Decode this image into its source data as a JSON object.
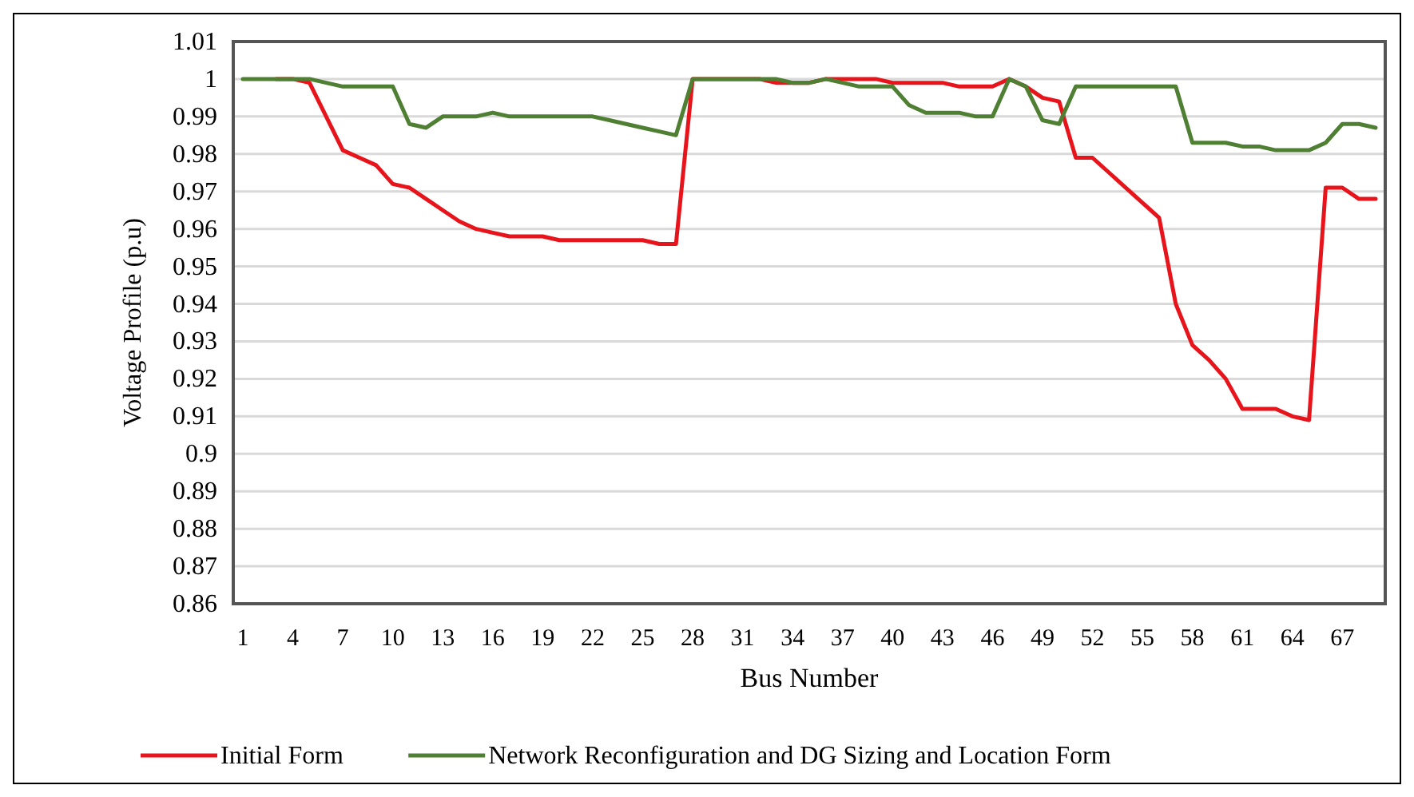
{
  "chart_data": {
    "type": "line",
    "xlabel": "Bus Number",
    "ylabel": "Voltage Profile (p.u)",
    "categories": [
      "1",
      null,
      null,
      "4",
      null,
      null,
      "7",
      null,
      null,
      "10",
      null,
      null,
      "13",
      null,
      null,
      "16",
      null,
      null,
      "19",
      null,
      null,
      "22",
      null,
      null,
      "25",
      null,
      null,
      "28",
      null,
      null,
      "31",
      null,
      null,
      "34",
      null,
      null,
      "37",
      null,
      null,
      "40",
      null,
      null,
      "43",
      null,
      null,
      "46",
      null,
      null,
      "49",
      null,
      null,
      "52",
      null,
      null,
      "55",
      null,
      null,
      "58",
      null,
      null,
      "61",
      null,
      null,
      "64",
      null,
      null,
      "67",
      null,
      null
    ],
    "series": [
      {
        "name": "Initial Form",
        "color": "#e8141c",
        "values": [
          null,
          null,
          1,
          1,
          0.999,
          0.99,
          0.981,
          0.979,
          0.977,
          0.972,
          0.971,
          0.968,
          0.965,
          0.962,
          0.96,
          0.959,
          0.958,
          0.958,
          0.958,
          0.957,
          0.957,
          0.957,
          0.957,
          0.957,
          0.957,
          0.956,
          0.956,
          1,
          1,
          1,
          1,
          1,
          0.999,
          0.999,
          0.999,
          1,
          1,
          1,
          1,
          0.999,
          0.999,
          0.999,
          0.999,
          0.998,
          0.998,
          0.998,
          1,
          0.998,
          0.995,
          0.994,
          0.979,
          0.979,
          0.975,
          0.971,
          0.967,
          0.963,
          0.94,
          0.929,
          0.925,
          0.92,
          0.912,
          0.912,
          0.912,
          0.91,
          0.909,
          0.971,
          0.971,
          0.968,
          0.968
        ]
      },
      {
        "name": "Network Reconfiguration and DG Sizing and Location Form",
        "color": "#4e7f32",
        "values": [
          1,
          1,
          1,
          1,
          1,
          0.999,
          0.998,
          0.998,
          0.998,
          0.998,
          0.988,
          0.987,
          0.99,
          0.99,
          0.99,
          0.991,
          0.99,
          0.99,
          0.99,
          0.99,
          0.99,
          0.99,
          0.989,
          0.988,
          0.987,
          0.986,
          0.985,
          1,
          1,
          1,
          1,
          1,
          1,
          0.999,
          0.999,
          1,
          0.999,
          0.998,
          0.998,
          0.998,
          0.993,
          0.991,
          0.991,
          0.991,
          0.99,
          0.99,
          1,
          0.998,
          0.989,
          0.988,
          0.998,
          0.998,
          0.998,
          0.998,
          0.998,
          0.998,
          0.998,
          0.983,
          0.983,
          0.983,
          0.982,
          0.982,
          0.981,
          0.981,
          0.981,
          0.983,
          0.988,
          0.988,
          0.987
        ]
      }
    ],
    "ylim": [
      0.86,
      1.01
    ],
    "yticks": [
      0.86,
      0.87,
      0.88,
      0.89,
      0.9,
      0.91,
      0.92,
      0.93,
      0.94,
      0.95,
      0.96,
      0.97,
      0.98,
      0.99,
      1,
      1.01
    ],
    "grid": "y",
    "legend": "bottom",
    "marker": "none",
    "line_style": "solid"
  }
}
